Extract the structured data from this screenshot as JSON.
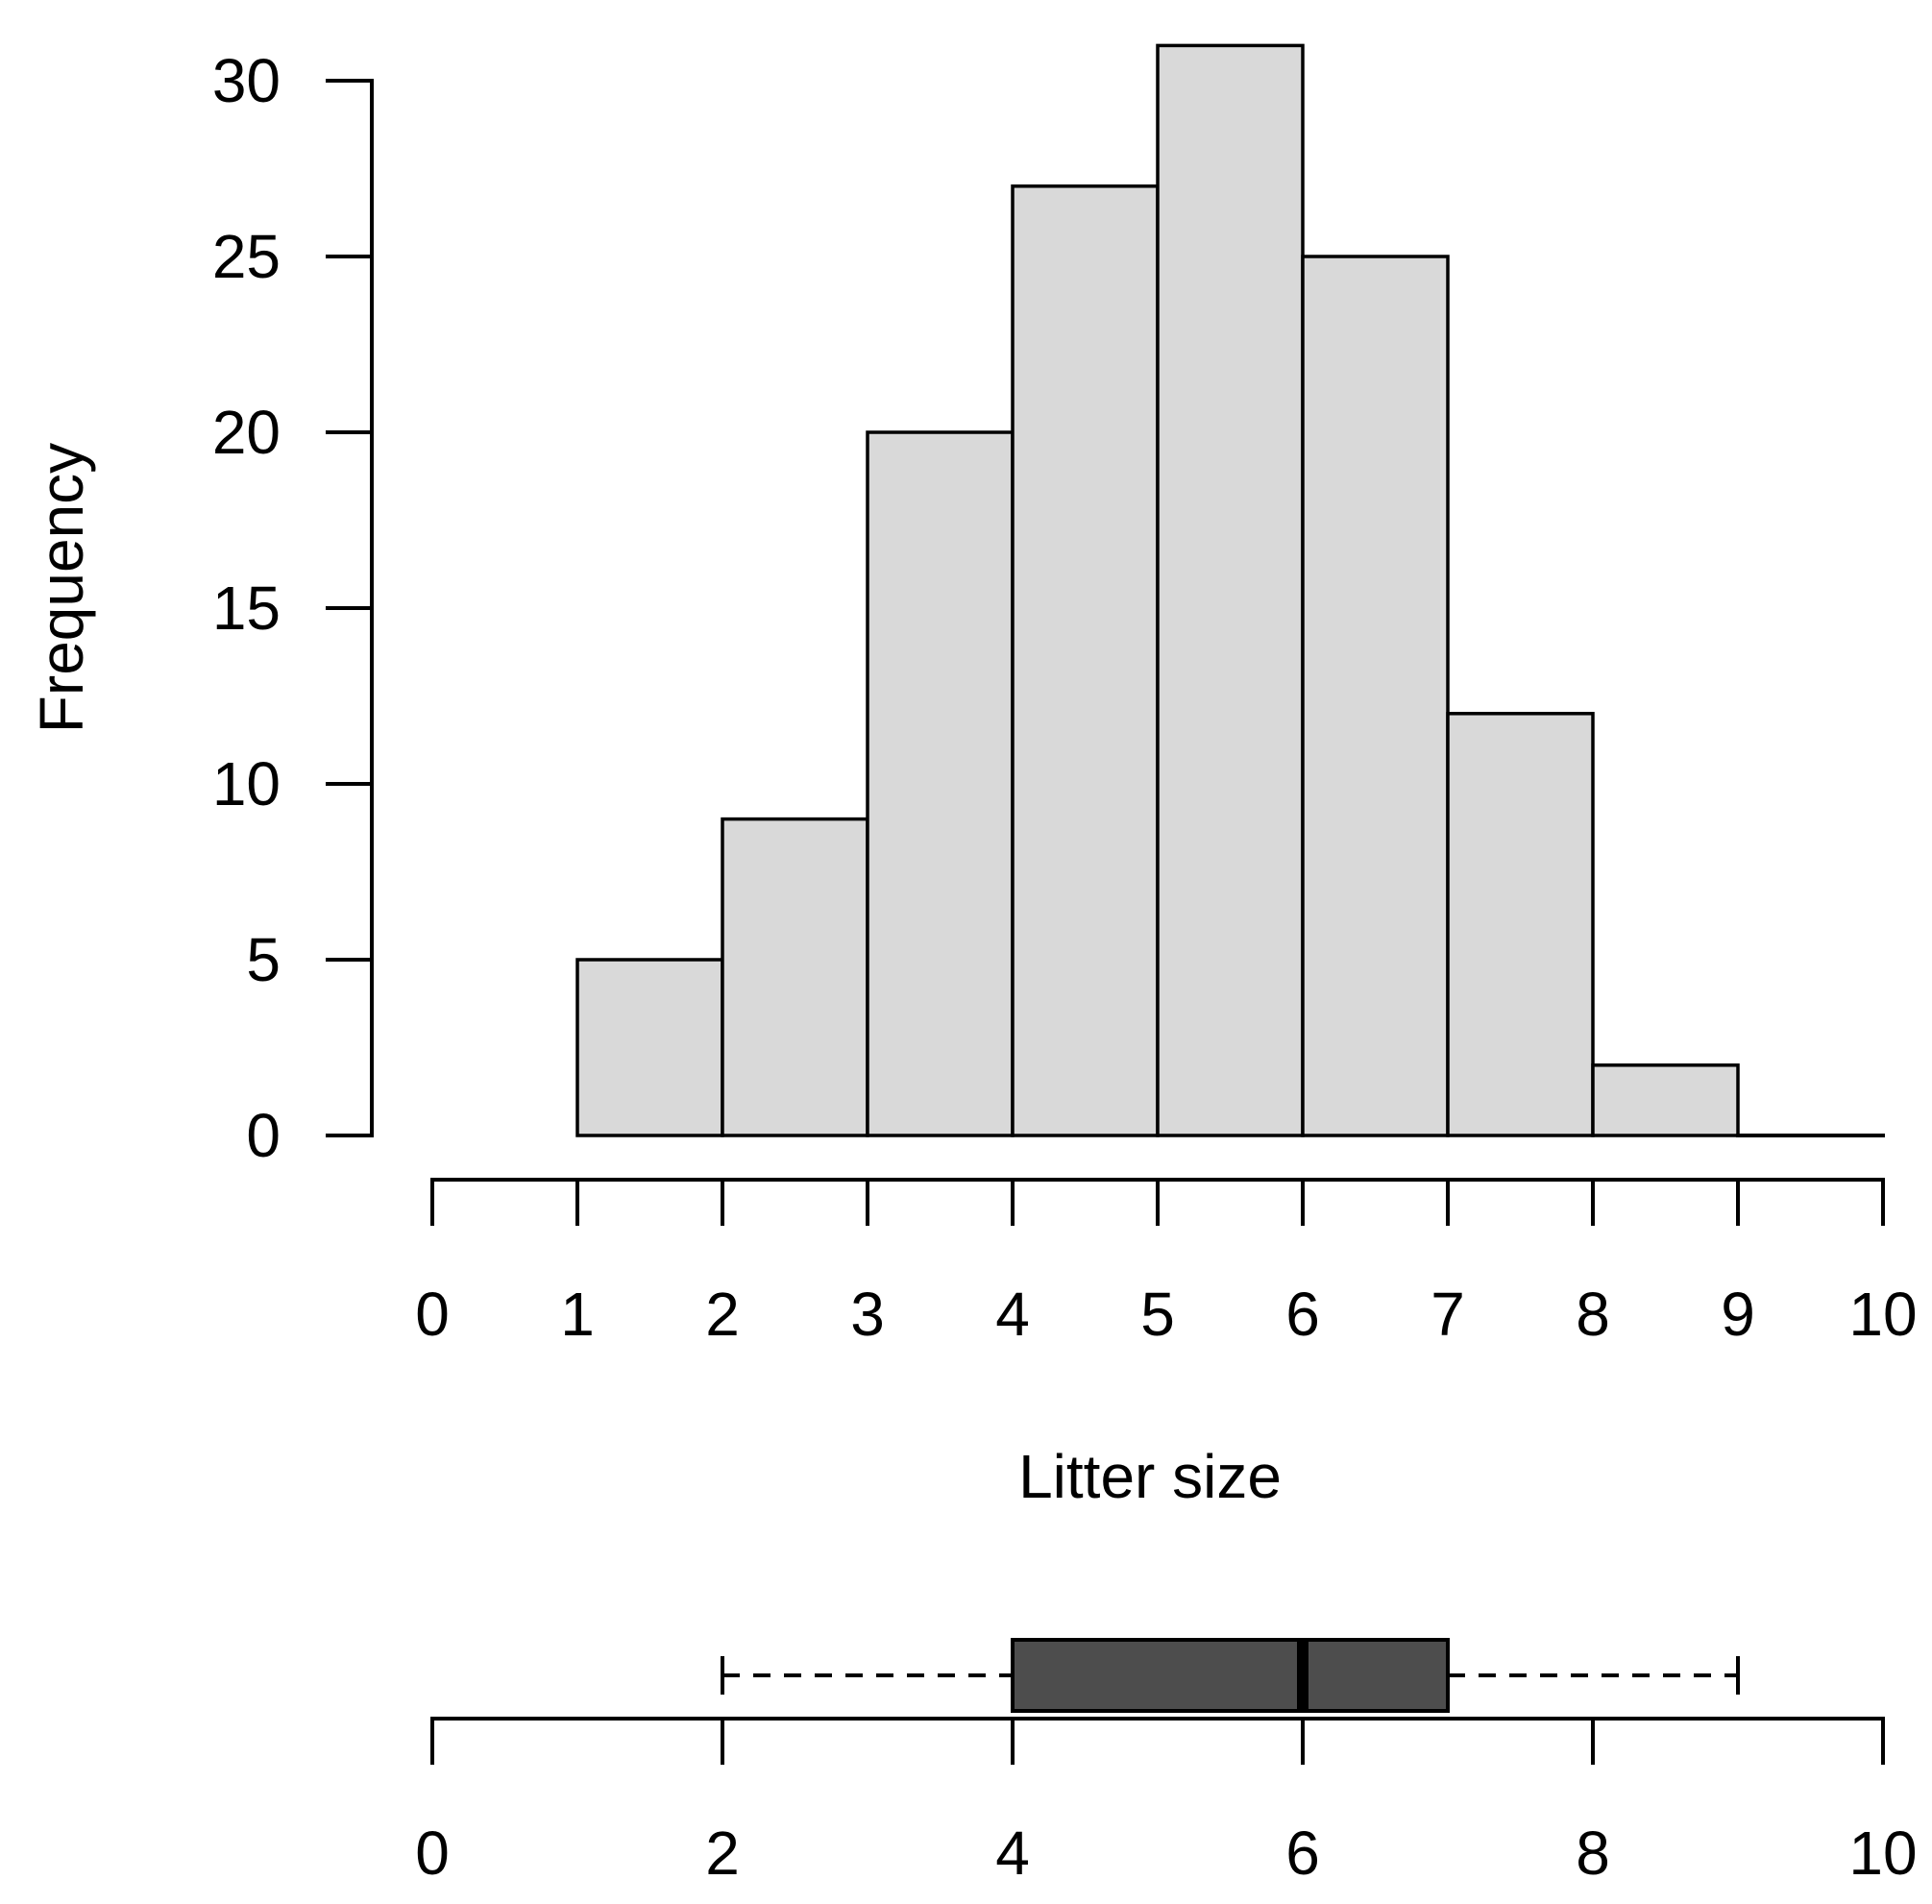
{
  "chart_data": [
    {
      "type": "bar",
      "chart_kind": "histogram",
      "title": "",
      "xlabel": "Litter size",
      "ylabel": "Frequency",
      "bins": [
        {
          "start": 1,
          "end": 2,
          "count": 5
        },
        {
          "start": 2,
          "end": 3,
          "count": 9
        },
        {
          "start": 3,
          "end": 4,
          "count": 20
        },
        {
          "start": 4,
          "end": 5,
          "count": 27
        },
        {
          "start": 5,
          "end": 6,
          "count": 31
        },
        {
          "start": 6,
          "end": 7,
          "count": 25
        },
        {
          "start": 7,
          "end": 8,
          "count": 12
        },
        {
          "start": 8,
          "end": 9,
          "count": 2
        },
        {
          "start": 9,
          "end": 10,
          "count": 0
        }
      ],
      "xlim": [
        0,
        10
      ],
      "ylim": [
        0,
        31
      ],
      "x_ticks": [
        "0",
        "1",
        "2",
        "3",
        "4",
        "5",
        "6",
        "7",
        "8",
        "9",
        "10"
      ],
      "y_ticks": [
        "0",
        "5",
        "10",
        "15",
        "20",
        "25",
        "30"
      ],
      "bar_color": "#d9d9d9",
      "grid": false
    },
    {
      "type": "boxplot",
      "orientation": "horizontal",
      "whisker_low": 2,
      "q1": 4,
      "median": 6,
      "q3": 7,
      "whisker_high": 9,
      "xlim": [
        0,
        10
      ],
      "x_ticks": [
        "0",
        "2",
        "4",
        "6",
        "8",
        "10"
      ],
      "box_color": "#4d4d4d",
      "whisker_style": "dashed"
    }
  ]
}
